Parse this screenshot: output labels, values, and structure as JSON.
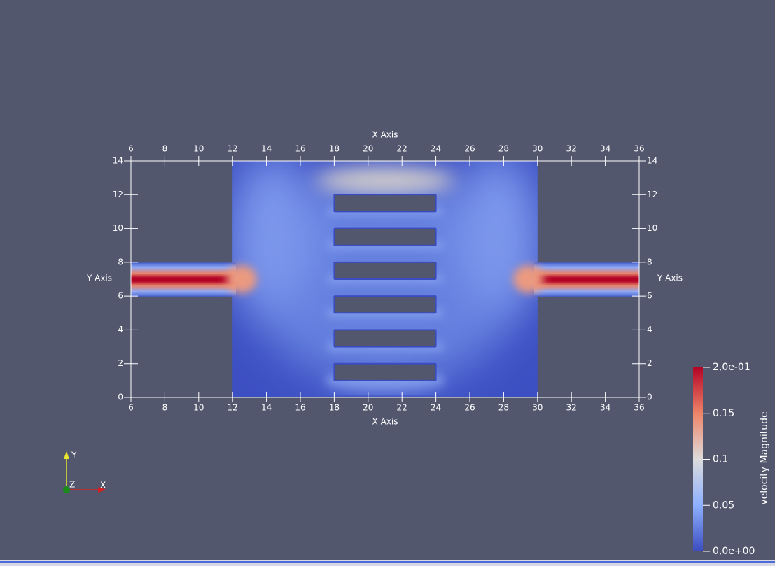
{
  "x_axis": {
    "title": "X Axis",
    "ticks": [
      6,
      8,
      10,
      12,
      14,
      16,
      18,
      20,
      22,
      24,
      26,
      28,
      30,
      32,
      34,
      36
    ]
  },
  "y_axis": {
    "title": "Y Axis",
    "ticks": [
      0,
      2,
      4,
      6,
      8,
      10,
      12,
      14
    ]
  },
  "color_bar": {
    "title": "velocity Magnitude",
    "labels": [
      "2,0e-01",
      "0.15",
      "0.1",
      "0.05",
      "0,0e+00"
    ]
  },
  "orientation_axes": {
    "labels": [
      "Y",
      "Z",
      "X"
    ]
  }
}
